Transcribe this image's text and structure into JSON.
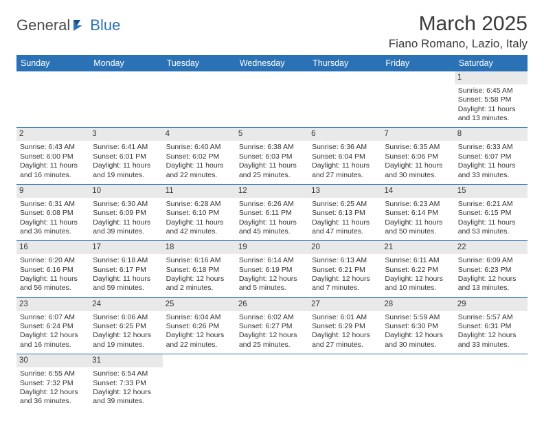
{
  "logo": {
    "text1": "General",
    "text2": "Blue"
  },
  "title": "March 2025",
  "subtitle": "Fiano Romano, Lazio, Italy",
  "colors": {
    "header_bg": "#2a72b5",
    "header_text": "#ffffff",
    "daynum_bg": "#e9e9e9",
    "border": "#2a72b5",
    "text": "#333333"
  },
  "day_headers": [
    "Sunday",
    "Monday",
    "Tuesday",
    "Wednesday",
    "Thursday",
    "Friday",
    "Saturday"
  ],
  "weeks": [
    [
      null,
      null,
      null,
      null,
      null,
      null,
      {
        "n": "1",
        "sunrise": "Sunrise: 6:45 AM",
        "sunset": "Sunset: 5:58 PM",
        "day": "Daylight: 11 hours and 13 minutes."
      }
    ],
    [
      {
        "n": "2",
        "sunrise": "Sunrise: 6:43 AM",
        "sunset": "Sunset: 6:00 PM",
        "day": "Daylight: 11 hours and 16 minutes."
      },
      {
        "n": "3",
        "sunrise": "Sunrise: 6:41 AM",
        "sunset": "Sunset: 6:01 PM",
        "day": "Daylight: 11 hours and 19 minutes."
      },
      {
        "n": "4",
        "sunrise": "Sunrise: 6:40 AM",
        "sunset": "Sunset: 6:02 PM",
        "day": "Daylight: 11 hours and 22 minutes."
      },
      {
        "n": "5",
        "sunrise": "Sunrise: 6:38 AM",
        "sunset": "Sunset: 6:03 PM",
        "day": "Daylight: 11 hours and 25 minutes."
      },
      {
        "n": "6",
        "sunrise": "Sunrise: 6:36 AM",
        "sunset": "Sunset: 6:04 PM",
        "day": "Daylight: 11 hours and 27 minutes."
      },
      {
        "n": "7",
        "sunrise": "Sunrise: 6:35 AM",
        "sunset": "Sunset: 6:06 PM",
        "day": "Daylight: 11 hours and 30 minutes."
      },
      {
        "n": "8",
        "sunrise": "Sunrise: 6:33 AM",
        "sunset": "Sunset: 6:07 PM",
        "day": "Daylight: 11 hours and 33 minutes."
      }
    ],
    [
      {
        "n": "9",
        "sunrise": "Sunrise: 6:31 AM",
        "sunset": "Sunset: 6:08 PM",
        "day": "Daylight: 11 hours and 36 minutes."
      },
      {
        "n": "10",
        "sunrise": "Sunrise: 6:30 AM",
        "sunset": "Sunset: 6:09 PM",
        "day": "Daylight: 11 hours and 39 minutes."
      },
      {
        "n": "11",
        "sunrise": "Sunrise: 6:28 AM",
        "sunset": "Sunset: 6:10 PM",
        "day": "Daylight: 11 hours and 42 minutes."
      },
      {
        "n": "12",
        "sunrise": "Sunrise: 6:26 AM",
        "sunset": "Sunset: 6:11 PM",
        "day": "Daylight: 11 hours and 45 minutes."
      },
      {
        "n": "13",
        "sunrise": "Sunrise: 6:25 AM",
        "sunset": "Sunset: 6:13 PM",
        "day": "Daylight: 11 hours and 47 minutes."
      },
      {
        "n": "14",
        "sunrise": "Sunrise: 6:23 AM",
        "sunset": "Sunset: 6:14 PM",
        "day": "Daylight: 11 hours and 50 minutes."
      },
      {
        "n": "15",
        "sunrise": "Sunrise: 6:21 AM",
        "sunset": "Sunset: 6:15 PM",
        "day": "Daylight: 11 hours and 53 minutes."
      }
    ],
    [
      {
        "n": "16",
        "sunrise": "Sunrise: 6:20 AM",
        "sunset": "Sunset: 6:16 PM",
        "day": "Daylight: 11 hours and 56 minutes."
      },
      {
        "n": "17",
        "sunrise": "Sunrise: 6:18 AM",
        "sunset": "Sunset: 6:17 PM",
        "day": "Daylight: 11 hours and 59 minutes."
      },
      {
        "n": "18",
        "sunrise": "Sunrise: 6:16 AM",
        "sunset": "Sunset: 6:18 PM",
        "day": "Daylight: 12 hours and 2 minutes."
      },
      {
        "n": "19",
        "sunrise": "Sunrise: 6:14 AM",
        "sunset": "Sunset: 6:19 PM",
        "day": "Daylight: 12 hours and 5 minutes."
      },
      {
        "n": "20",
        "sunrise": "Sunrise: 6:13 AM",
        "sunset": "Sunset: 6:21 PM",
        "day": "Daylight: 12 hours and 7 minutes."
      },
      {
        "n": "21",
        "sunrise": "Sunrise: 6:11 AM",
        "sunset": "Sunset: 6:22 PM",
        "day": "Daylight: 12 hours and 10 minutes."
      },
      {
        "n": "22",
        "sunrise": "Sunrise: 6:09 AM",
        "sunset": "Sunset: 6:23 PM",
        "day": "Daylight: 12 hours and 13 minutes."
      }
    ],
    [
      {
        "n": "23",
        "sunrise": "Sunrise: 6:07 AM",
        "sunset": "Sunset: 6:24 PM",
        "day": "Daylight: 12 hours and 16 minutes."
      },
      {
        "n": "24",
        "sunrise": "Sunrise: 6:06 AM",
        "sunset": "Sunset: 6:25 PM",
        "day": "Daylight: 12 hours and 19 minutes."
      },
      {
        "n": "25",
        "sunrise": "Sunrise: 6:04 AM",
        "sunset": "Sunset: 6:26 PM",
        "day": "Daylight: 12 hours and 22 minutes."
      },
      {
        "n": "26",
        "sunrise": "Sunrise: 6:02 AM",
        "sunset": "Sunset: 6:27 PM",
        "day": "Daylight: 12 hours and 25 minutes."
      },
      {
        "n": "27",
        "sunrise": "Sunrise: 6:01 AM",
        "sunset": "Sunset: 6:29 PM",
        "day": "Daylight: 12 hours and 27 minutes."
      },
      {
        "n": "28",
        "sunrise": "Sunrise: 5:59 AM",
        "sunset": "Sunset: 6:30 PM",
        "day": "Daylight: 12 hours and 30 minutes."
      },
      {
        "n": "29",
        "sunrise": "Sunrise: 5:57 AM",
        "sunset": "Sunset: 6:31 PM",
        "day": "Daylight: 12 hours and 33 minutes."
      }
    ],
    [
      {
        "n": "30",
        "sunrise": "Sunrise: 6:55 AM",
        "sunset": "Sunset: 7:32 PM",
        "day": "Daylight: 12 hours and 36 minutes."
      },
      {
        "n": "31",
        "sunrise": "Sunrise: 6:54 AM",
        "sunset": "Sunset: 7:33 PM",
        "day": "Daylight: 12 hours and 39 minutes."
      },
      null,
      null,
      null,
      null,
      null
    ]
  ]
}
